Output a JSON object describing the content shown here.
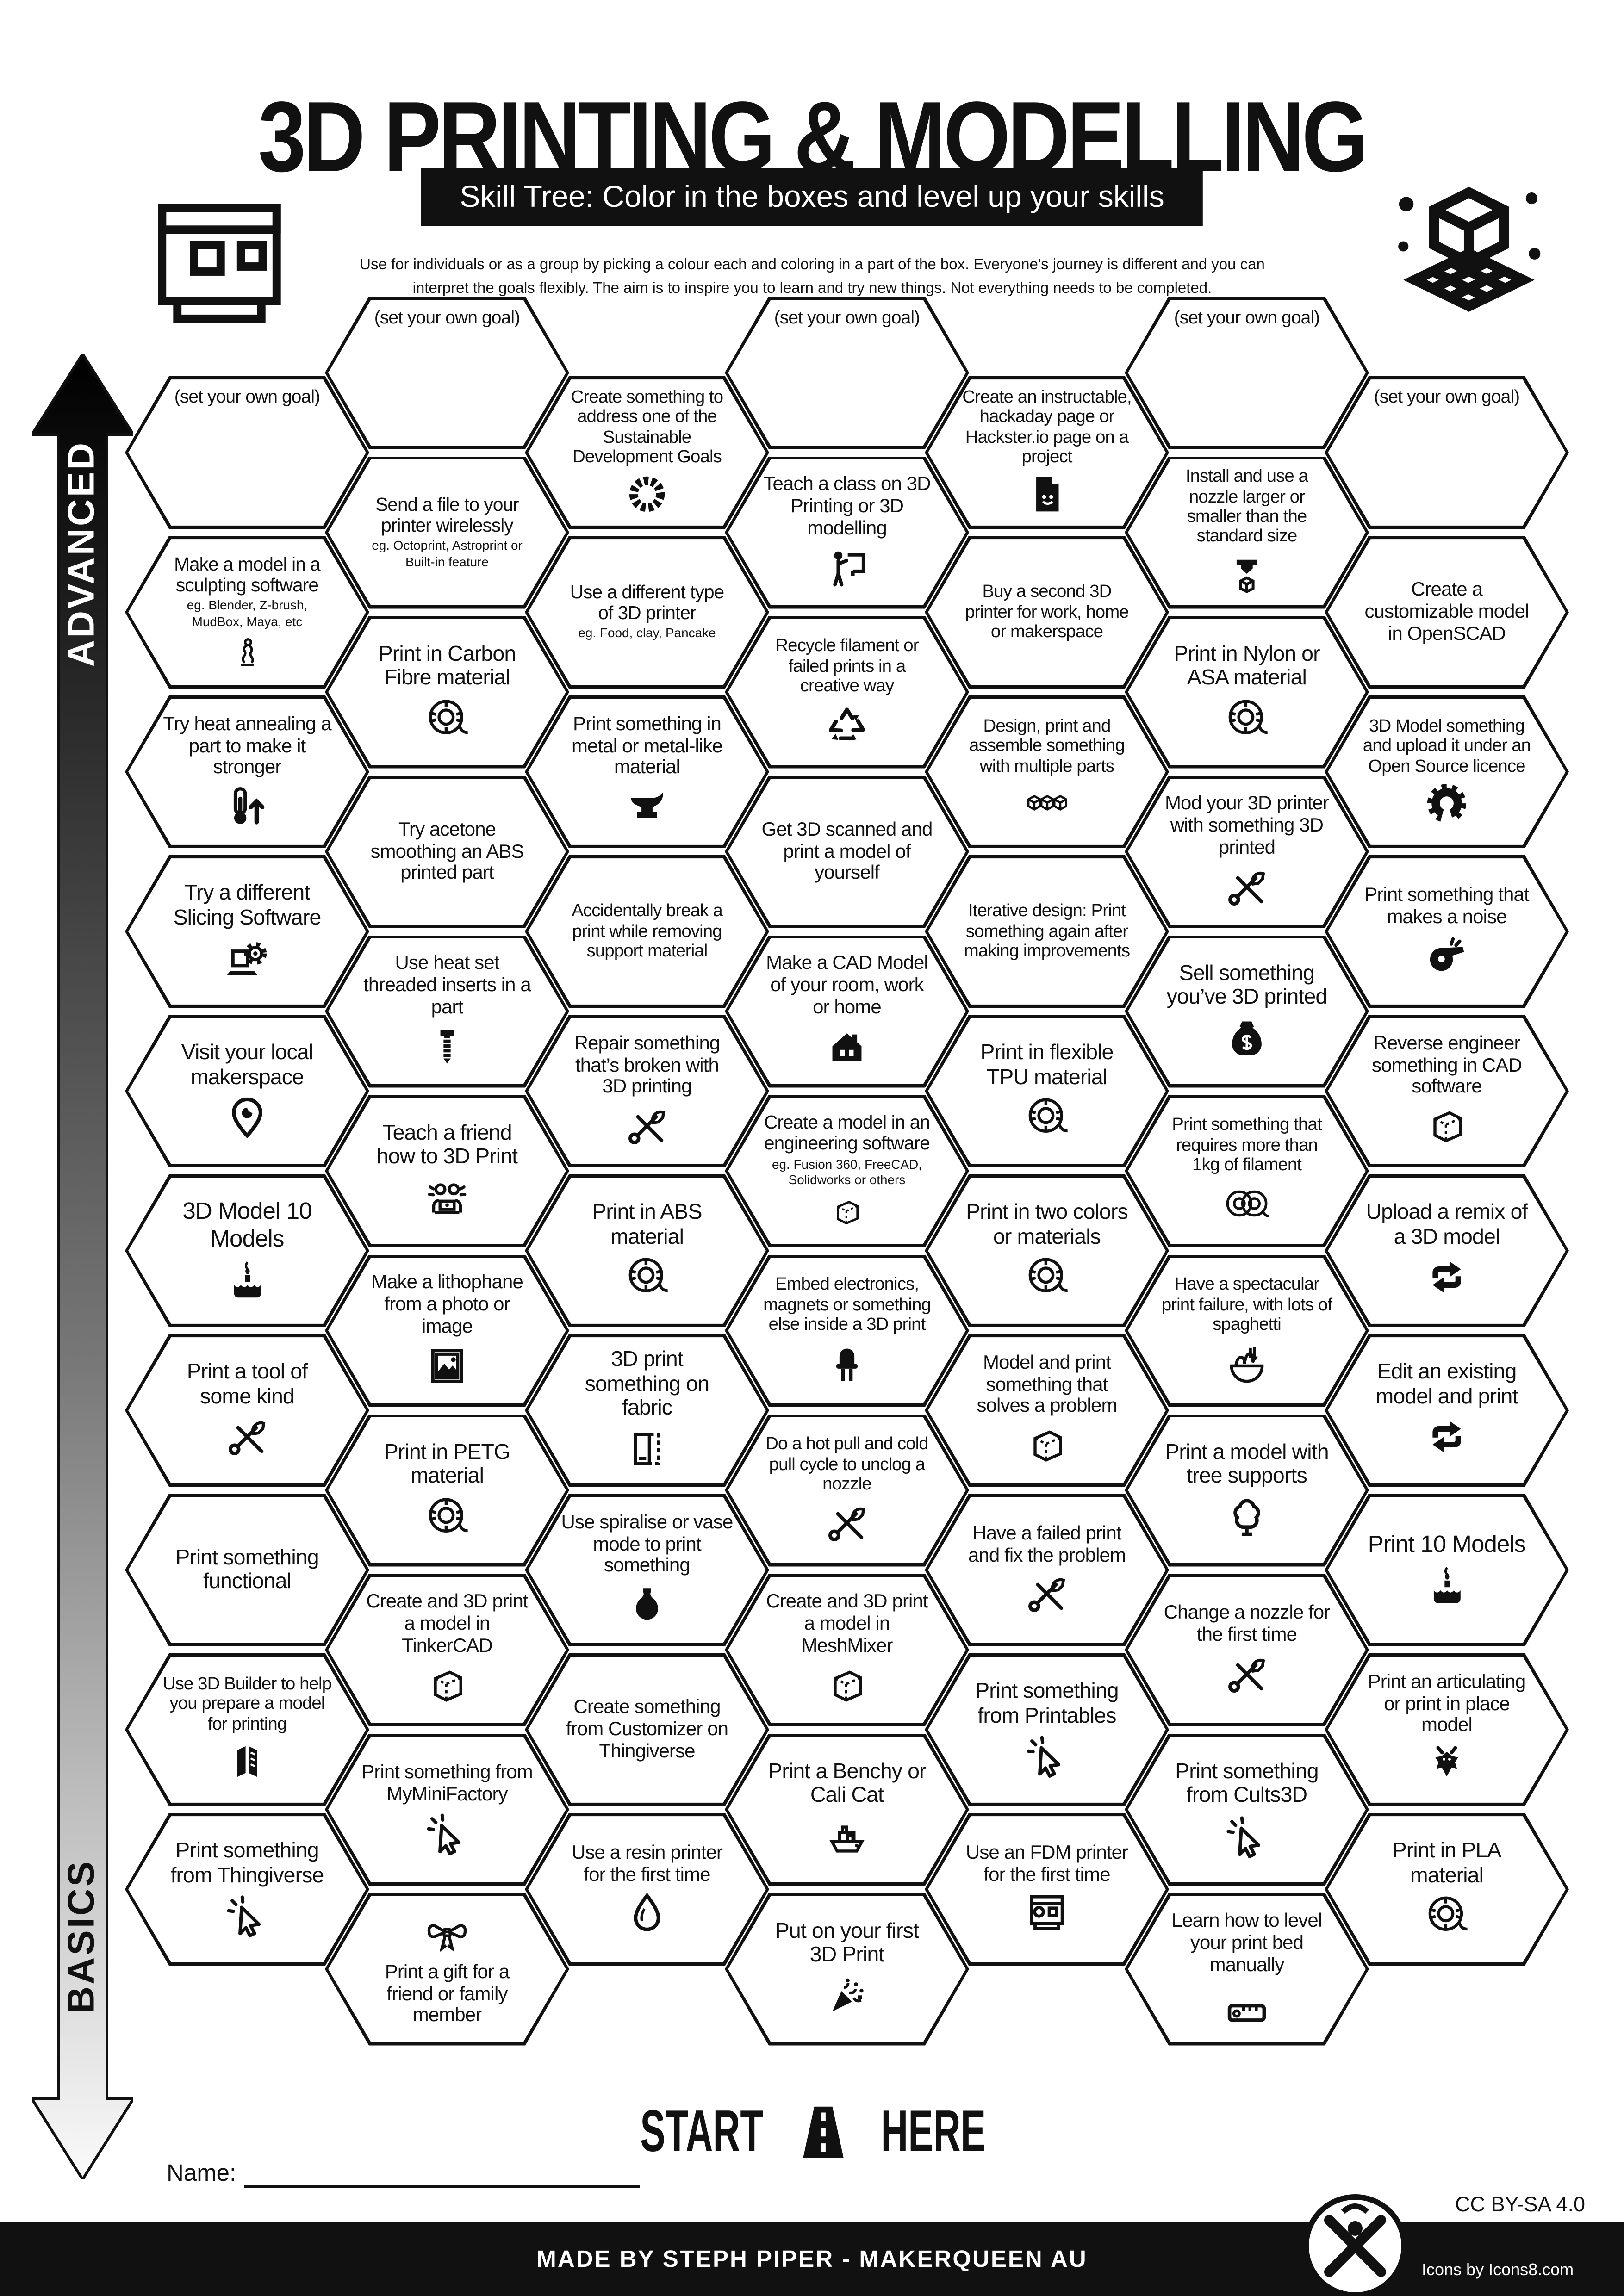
{
  "header": {
    "title": "3D PRINTING & MODELLING",
    "subtitle": "Skill Tree:  Color in the boxes and level up your skills",
    "description_line1": "Use for individuals or as a group by picking a colour each and coloring in a part of the box.  Everyone's journey is different and you can",
    "description_line2": "interpret the goals flexibly.  The aim is to inspire you to learn and try new things. Not everything needs to be completed.",
    "printer_logo": "printer-logo-icon",
    "cube_logo": "cube-grid-logo-icon"
  },
  "axis": {
    "advanced_label": "ADVANCED",
    "basics_label": "BASICS"
  },
  "start": {
    "left": "START",
    "right": "HERE",
    "icon": "road-icon"
  },
  "name_label": "Name:",
  "footer": {
    "credit": "MADE BY STEPH PIPER  -  MAKERQUEEN AU",
    "license": "CC BY-SA 4.0",
    "icons_credit": "Icons by Icons8.com",
    "logo": "makerqueen-logo"
  },
  "hexes": [
    {
      "c": 0,
      "r": 0,
      "text": "(set your own goal)",
      "align": "top"
    },
    {
      "c": 0,
      "r": 1,
      "text": "Make a model in a sculpting software",
      "sub": "eg. Blender, Z-brush, MudBox, Maya, etc",
      "icon": "sculpting"
    },
    {
      "c": 0,
      "r": 2,
      "text": "Try heat annealing a part to make it stronger",
      "icon": "heat-anneal"
    },
    {
      "c": 0,
      "r": 3,
      "text": "Try a different Slicing Software",
      "icon": "slicer-laptop"
    },
    {
      "c": 0,
      "r": 4,
      "text": "Visit your local makerspace",
      "icon": "map-pin"
    },
    {
      "c": 0,
      "r": 5,
      "text": "3D Model 10 Models",
      "icon": "cake"
    },
    {
      "c": 0,
      "r": 6,
      "text": "Print a tool of some kind",
      "icon": "tools"
    },
    {
      "c": 0,
      "r": 7,
      "text": "Print something functional"
    },
    {
      "c": 0,
      "r": 8,
      "text": "Use 3D Builder to help you prepare a model for printing",
      "icon": "3d-builder"
    },
    {
      "c": 0,
      "r": 9,
      "text": "Print something from Thingiverse",
      "icon": "cursor"
    },
    {
      "c": 1,
      "r": 0,
      "text": "(set your own goal)",
      "align": "top"
    },
    {
      "c": 1,
      "r": 1,
      "text": "Send a file to your printer wirelessly",
      "sub": "eg. Octoprint, Astroprint or Built-in feature"
    },
    {
      "c": 1,
      "r": 2,
      "text": "Print in Carbon Fibre material",
      "icon": "spool"
    },
    {
      "c": 1,
      "r": 3,
      "text": "Try acetone smoothing an ABS printed part"
    },
    {
      "c": 1,
      "r": 4,
      "text": "Use heat set threaded inserts in a part",
      "icon": "threaded-insert"
    },
    {
      "c": 1,
      "r": 5,
      "text": "Teach a friend how to 3D Print",
      "icon": "friends"
    },
    {
      "c": 1,
      "r": 6,
      "text": "Make a lithophane from a photo or image",
      "icon": "lithophane"
    },
    {
      "c": 1,
      "r": 7,
      "text": "Print in PETG material",
      "icon": "spool"
    },
    {
      "c": 1,
      "r": 8,
      "text": "Create and 3D print a model in TinkerCAD",
      "icon": "cube"
    },
    {
      "c": 1,
      "r": 9,
      "text": "Print something from MyMiniFactory",
      "icon": "cursor"
    },
    {
      "c": 1,
      "r": 10,
      "text": "Print a gift for a friend or family member",
      "icon": "gift-bow",
      "iconPos": "top"
    },
    {
      "c": 2,
      "r": 0,
      "text": "Create something to address one of the Sustainable Development Goals",
      "icon": "sdg-wheel"
    },
    {
      "c": 2,
      "r": 1,
      "text": "Use a different type of 3D printer",
      "sub": "eg. Food, clay, Pancake"
    },
    {
      "c": 2,
      "r": 2,
      "text": "Print something in metal or metal-like material",
      "icon": "anvil"
    },
    {
      "c": 2,
      "r": 3,
      "text": "Accidentally break a print while removing support material"
    },
    {
      "c": 2,
      "r": 4,
      "text": "Repair something that’s broken with 3D printing",
      "icon": "tools"
    },
    {
      "c": 2,
      "r": 5,
      "text": "Print in ABS material",
      "icon": "spool"
    },
    {
      "c": 2,
      "r": 6,
      "text": "3D print something on fabric",
      "icon": "fabric"
    },
    {
      "c": 2,
      "r": 7,
      "text": "Use spiralise or vase mode to print something",
      "icon": "vase"
    },
    {
      "c": 2,
      "r": 8,
      "text": "Create something from Customizer on Thingiverse"
    },
    {
      "c": 2,
      "r": 9,
      "text": "Use a resin printer for the first time",
      "icon": "droplet"
    },
    {
      "c": 3,
      "r": 0,
      "text": "(set your own goal)",
      "align": "top"
    },
    {
      "c": 3,
      "r": 1,
      "text": "Teach a class on 3D Printing or 3D modelling",
      "icon": "teacher"
    },
    {
      "c": 3,
      "r": 2,
      "text": "Recycle filament or failed prints in a creative way",
      "icon": "recycle"
    },
    {
      "c": 3,
      "r": 3,
      "text": "Get 3D scanned and print a model of yourself"
    },
    {
      "c": 3,
      "r": 4,
      "text": "Make a CAD Model of your room, work or home",
      "icon": "house"
    },
    {
      "c": 3,
      "r": 5,
      "text": "Create a model in an engineering software",
      "sub": "eg. Fusion 360, FreeCAD, Solidworks or others",
      "icon": "cube"
    },
    {
      "c": 3,
      "r": 6,
      "text": "Embed electronics, magnets or something else inside a 3D print",
      "icon": "led"
    },
    {
      "c": 3,
      "r": 7,
      "text": "Do a hot pull and cold pull cycle to unclog a nozzle",
      "icon": "tools"
    },
    {
      "c": 3,
      "r": 8,
      "text": "Create and 3D print a model in MeshMixer",
      "icon": "cube"
    },
    {
      "c": 3,
      "r": 9,
      "text": "Print a Benchy or Cali Cat",
      "icon": "benchy"
    },
    {
      "c": 3,
      "r": 10,
      "text": "Put on your first 3D Print",
      "icon": "party"
    },
    {
      "c": 4,
      "r": 0,
      "text": "Create an instructable, hackaday page or Hackster.io page on a project",
      "icon": "doc-smiley"
    },
    {
      "c": 4,
      "r": 1,
      "text": "Buy a second 3D printer for work, home or makerspace"
    },
    {
      "c": 4,
      "r": 2,
      "text": "Design, print and assemble something with multiple parts",
      "icon": "three-cubes"
    },
    {
      "c": 4,
      "r": 3,
      "text": "Iterative design: Print something again after making improvements"
    },
    {
      "c": 4,
      "r": 4,
      "text": "Print in flexible TPU material",
      "icon": "spool"
    },
    {
      "c": 4,
      "r": 5,
      "text": "Print in two colors or materials",
      "icon": "spool"
    },
    {
      "c": 4,
      "r": 6,
      "text": "Model and print something that solves a problem",
      "icon": "cube"
    },
    {
      "c": 4,
      "r": 7,
      "text": "Have a failed print and fix the problem",
      "icon": "tools"
    },
    {
      "c": 4,
      "r": 8,
      "text": "Print something from Printables",
      "icon": "cursor"
    },
    {
      "c": 4,
      "r": 9,
      "text": "Use an FDM printer for the first time",
      "icon": "printer"
    },
    {
      "c": 5,
      "r": 0,
      "text": "(set your own goal)",
      "align": "top"
    },
    {
      "c": 5,
      "r": 1,
      "text": "Install and use a nozzle larger or smaller than the standard size",
      "icon": "nozzle"
    },
    {
      "c": 5,
      "r": 2,
      "text": "Print in Nylon or ASA material",
      "icon": "spool"
    },
    {
      "c": 5,
      "r": 3,
      "text": "Mod your 3D printer with something 3D printed",
      "icon": "tools"
    },
    {
      "c": 5,
      "r": 4,
      "text": "Sell something you’ve 3D printed",
      "icon": "money-bag"
    },
    {
      "c": 5,
      "r": 5,
      "text": "Print something that requires more than 1kg of filament",
      "icon": "two-spools"
    },
    {
      "c": 5,
      "r": 6,
      "text": "Have a spectacular print failure, with lots of spaghetti",
      "icon": "spaghetti"
    },
    {
      "c": 5,
      "r": 7,
      "text": "Print a model with tree supports",
      "icon": "tree"
    },
    {
      "c": 5,
      "r": 8,
      "text": "Change a nozzle for the first time",
      "icon": "tools"
    },
    {
      "c": 5,
      "r": 9,
      "text": "Print something from Cults3D",
      "icon": "cursor"
    },
    {
      "c": 5,
      "r": 10,
      "text": "Learn how to level your print bed manually",
      "icon": "ruler"
    },
    {
      "c": 6,
      "r": 0,
      "text": "(set your own goal)",
      "align": "top"
    },
    {
      "c": 6,
      "r": 1,
      "text": "Create a customizable model in OpenSCAD"
    },
    {
      "c": 6,
      "r": 2,
      "text": "3D Model something and upload it under an Open Source licence",
      "icon": "open-source"
    },
    {
      "c": 6,
      "r": 3,
      "text": "Print something that makes a noise",
      "icon": "whistle"
    },
    {
      "c": 6,
      "r": 4,
      "text": "Reverse engineer something in CAD software",
      "icon": "cube"
    },
    {
      "c": 6,
      "r": 5,
      "text": "Upload a remix of a 3D model",
      "icon": "remix"
    },
    {
      "c": 6,
      "r": 6,
      "text": "Edit an existing model and print",
      "icon": "remix"
    },
    {
      "c": 6,
      "r": 7,
      "text": "Print 10 Models",
      "icon": "cake"
    },
    {
      "c": 6,
      "r": 8,
      "text": "Print an articulating or print in place model",
      "icon": "dragon"
    },
    {
      "c": 6,
      "r": 9,
      "text": "Print in PLA material",
      "icon": "spool"
    }
  ]
}
